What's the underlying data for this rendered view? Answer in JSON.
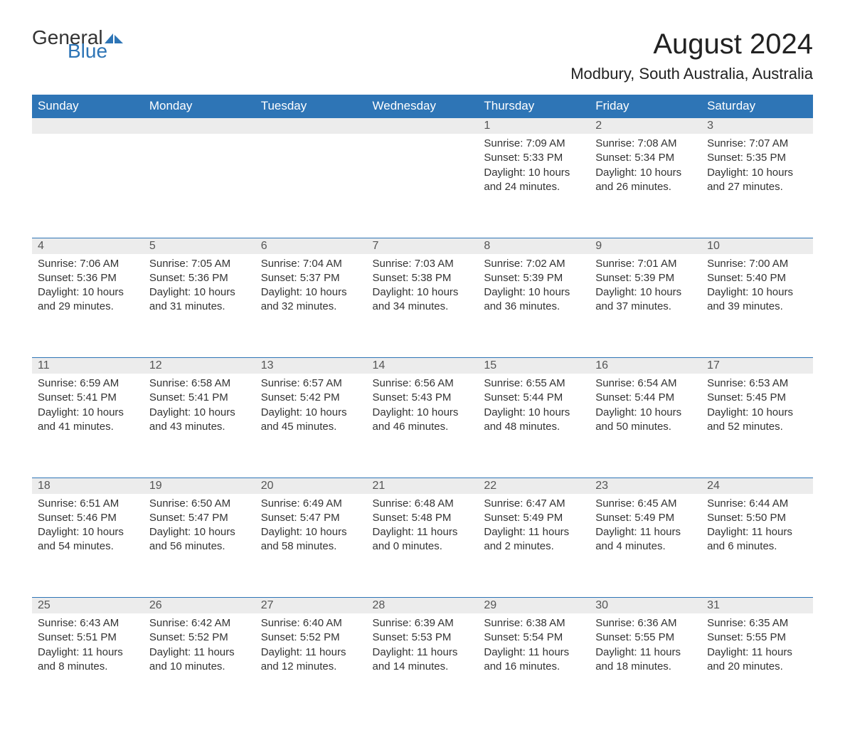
{
  "logo": {
    "text1": "General",
    "text2": "Blue",
    "text1_color": "#333333",
    "text2_color": "#2e75b6"
  },
  "title": "August 2024",
  "subtitle": "Modbury, South Australia, Australia",
  "header_bg": "#2e75b6",
  "header_fg": "#ffffff",
  "daynum_bg": "#ececec",
  "border_color": "#2e75b6",
  "text_color": "#333333",
  "background": "#ffffff",
  "font_family": "Arial, Helvetica, sans-serif",
  "title_fontsize": 40,
  "subtitle_fontsize": 22,
  "header_fontsize": 17,
  "detail_fontsize": 15,
  "columns": [
    "Sunday",
    "Monday",
    "Tuesday",
    "Wednesday",
    "Thursday",
    "Friday",
    "Saturday"
  ],
  "weeks": [
    [
      null,
      null,
      null,
      null,
      {
        "day": "1",
        "sunrise": "7:09 AM",
        "sunset": "5:33 PM",
        "daylight": "10 hours and 24 minutes."
      },
      {
        "day": "2",
        "sunrise": "7:08 AM",
        "sunset": "5:34 PM",
        "daylight": "10 hours and 26 minutes."
      },
      {
        "day": "3",
        "sunrise": "7:07 AM",
        "sunset": "5:35 PM",
        "daylight": "10 hours and 27 minutes."
      }
    ],
    [
      {
        "day": "4",
        "sunrise": "7:06 AM",
        "sunset": "5:36 PM",
        "daylight": "10 hours and 29 minutes."
      },
      {
        "day": "5",
        "sunrise": "7:05 AM",
        "sunset": "5:36 PM",
        "daylight": "10 hours and 31 minutes."
      },
      {
        "day": "6",
        "sunrise": "7:04 AM",
        "sunset": "5:37 PM",
        "daylight": "10 hours and 32 minutes."
      },
      {
        "day": "7",
        "sunrise": "7:03 AM",
        "sunset": "5:38 PM",
        "daylight": "10 hours and 34 minutes."
      },
      {
        "day": "8",
        "sunrise": "7:02 AM",
        "sunset": "5:39 PM",
        "daylight": "10 hours and 36 minutes."
      },
      {
        "day": "9",
        "sunrise": "7:01 AM",
        "sunset": "5:39 PM",
        "daylight": "10 hours and 37 minutes."
      },
      {
        "day": "10",
        "sunrise": "7:00 AM",
        "sunset": "5:40 PM",
        "daylight": "10 hours and 39 minutes."
      }
    ],
    [
      {
        "day": "11",
        "sunrise": "6:59 AM",
        "sunset": "5:41 PM",
        "daylight": "10 hours and 41 minutes."
      },
      {
        "day": "12",
        "sunrise": "6:58 AM",
        "sunset": "5:41 PM",
        "daylight": "10 hours and 43 minutes."
      },
      {
        "day": "13",
        "sunrise": "6:57 AM",
        "sunset": "5:42 PM",
        "daylight": "10 hours and 45 minutes."
      },
      {
        "day": "14",
        "sunrise": "6:56 AM",
        "sunset": "5:43 PM",
        "daylight": "10 hours and 46 minutes."
      },
      {
        "day": "15",
        "sunrise": "6:55 AM",
        "sunset": "5:44 PM",
        "daylight": "10 hours and 48 minutes."
      },
      {
        "day": "16",
        "sunrise": "6:54 AM",
        "sunset": "5:44 PM",
        "daylight": "10 hours and 50 minutes."
      },
      {
        "day": "17",
        "sunrise": "6:53 AM",
        "sunset": "5:45 PM",
        "daylight": "10 hours and 52 minutes."
      }
    ],
    [
      {
        "day": "18",
        "sunrise": "6:51 AM",
        "sunset": "5:46 PM",
        "daylight": "10 hours and 54 minutes."
      },
      {
        "day": "19",
        "sunrise": "6:50 AM",
        "sunset": "5:47 PM",
        "daylight": "10 hours and 56 minutes."
      },
      {
        "day": "20",
        "sunrise": "6:49 AM",
        "sunset": "5:47 PM",
        "daylight": "10 hours and 58 minutes."
      },
      {
        "day": "21",
        "sunrise": "6:48 AM",
        "sunset": "5:48 PM",
        "daylight": "11 hours and 0 minutes."
      },
      {
        "day": "22",
        "sunrise": "6:47 AM",
        "sunset": "5:49 PM",
        "daylight": "11 hours and 2 minutes."
      },
      {
        "day": "23",
        "sunrise": "6:45 AM",
        "sunset": "5:49 PM",
        "daylight": "11 hours and 4 minutes."
      },
      {
        "day": "24",
        "sunrise": "6:44 AM",
        "sunset": "5:50 PM",
        "daylight": "11 hours and 6 minutes."
      }
    ],
    [
      {
        "day": "25",
        "sunrise": "6:43 AM",
        "sunset": "5:51 PM",
        "daylight": "11 hours and 8 minutes."
      },
      {
        "day": "26",
        "sunrise": "6:42 AM",
        "sunset": "5:52 PM",
        "daylight": "11 hours and 10 minutes."
      },
      {
        "day": "27",
        "sunrise": "6:40 AM",
        "sunset": "5:52 PM",
        "daylight": "11 hours and 12 minutes."
      },
      {
        "day": "28",
        "sunrise": "6:39 AM",
        "sunset": "5:53 PM",
        "daylight": "11 hours and 14 minutes."
      },
      {
        "day": "29",
        "sunrise": "6:38 AM",
        "sunset": "5:54 PM",
        "daylight": "11 hours and 16 minutes."
      },
      {
        "day": "30",
        "sunrise": "6:36 AM",
        "sunset": "5:55 PM",
        "daylight": "11 hours and 18 minutes."
      },
      {
        "day": "31",
        "sunrise": "6:35 AM",
        "sunset": "5:55 PM",
        "daylight": "11 hours and 20 minutes."
      }
    ]
  ],
  "labels": {
    "sunrise": "Sunrise:",
    "sunset": "Sunset:",
    "daylight": "Daylight:"
  }
}
